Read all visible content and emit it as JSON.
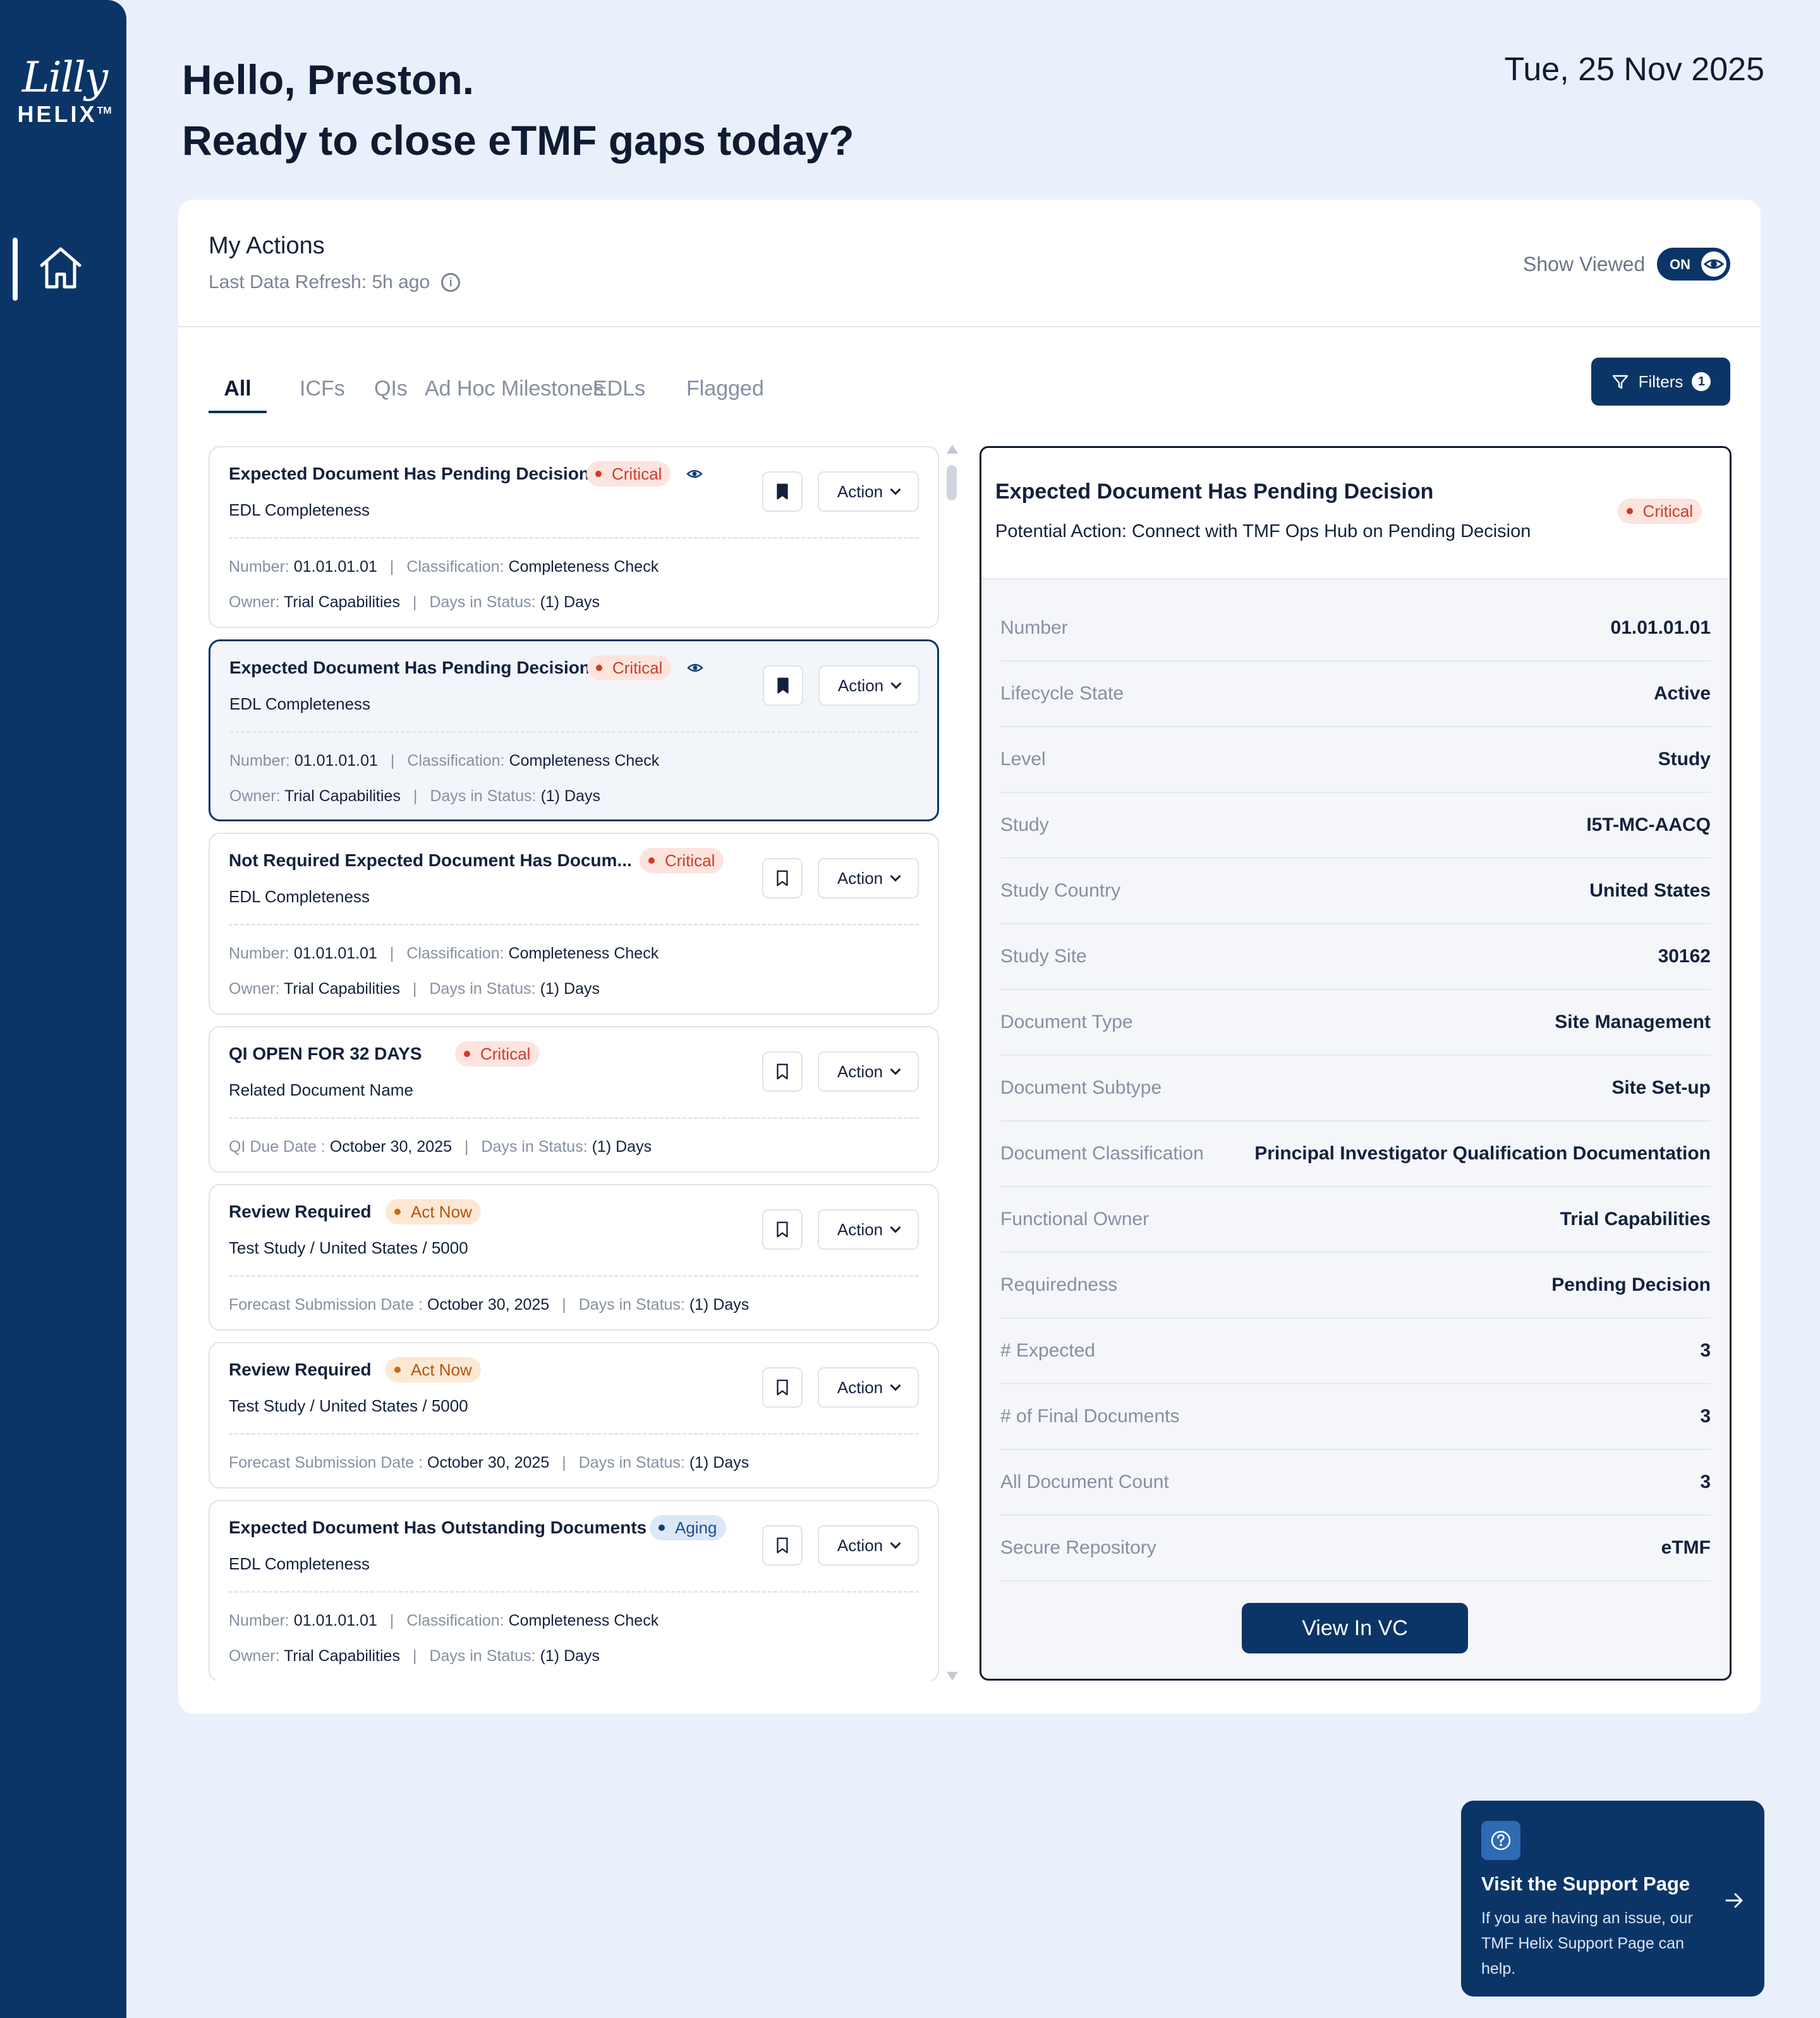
{
  "brand": {
    "script": "Lilly",
    "name": "HELIX",
    "tm": "TM"
  },
  "nav": {
    "home": "home"
  },
  "header": {
    "greeting_line1": "Hello, Preston.",
    "greeting_line2": "Ready to close eTMF gaps today?",
    "date": "Tue, 25 Nov 2025"
  },
  "actions": {
    "title": "My Actions",
    "refresh": "Last Data Refresh: 5h ago",
    "show_viewed_label": "Show Viewed",
    "toggle_label": "ON",
    "toggle_state": true,
    "filters_label": "Filters",
    "filters_count": "1",
    "tabs": [
      {
        "label": "All",
        "active": true
      },
      {
        "label": "ICFs",
        "active": false
      },
      {
        "label": "QIs",
        "active": false
      },
      {
        "label": "Ad Hoc Milestones",
        "active": false
      },
      {
        "label": "EDLs",
        "active": false
      },
      {
        "label": "Flagged",
        "active": false
      }
    ]
  },
  "items": [
    {
      "title": "Expected Document Has Pending Decision",
      "badge": "Critical",
      "badge_type": "critical",
      "viewed": true,
      "bookmarked": true,
      "selected": false,
      "subtitle": "EDL Completeness",
      "action": "Action",
      "l1": {
        "a_label": "Number:",
        "a_value": "01.01.01.01",
        "b_label": "Classification:",
        "b_value": "Completeness Check"
      },
      "l2": {
        "a_label": "Owner:",
        "a_value": "Trial Capabilities",
        "b_label": "Days in Status:",
        "b_value": "(1) Days"
      }
    },
    {
      "title": "Expected Document Has Pending Decision",
      "badge": "Critical",
      "badge_type": "critical",
      "viewed": true,
      "bookmarked": true,
      "selected": true,
      "subtitle": "EDL Completeness",
      "action": "Action",
      "l1": {
        "a_label": "Number:",
        "a_value": "01.01.01.01",
        "b_label": "Classification:",
        "b_value": "Completeness Check"
      },
      "l2": {
        "a_label": "Owner:",
        "a_value": "Trial Capabilities",
        "b_label": "Days in Status:",
        "b_value": "(1) Days"
      }
    },
    {
      "title": "Not Required Expected Document Has Docum...",
      "badge": "Critical",
      "badge_type": "critical",
      "viewed": false,
      "bookmarked": false,
      "selected": false,
      "subtitle": "EDL Completeness",
      "action": "Action",
      "l1": {
        "a_label": "Number:",
        "a_value": "01.01.01.01",
        "b_label": "Classification:",
        "b_value": "Completeness Check"
      },
      "l2": {
        "a_label": "Owner:",
        "a_value": "Trial Capabilities",
        "b_label": "Days in Status:",
        "b_value": "(1) Days"
      }
    },
    {
      "title": "QI OPEN FOR 32 DAYS",
      "badge": "Critical",
      "badge_type": "critical",
      "viewed": false,
      "bookmarked": false,
      "selected": false,
      "subtitle": "Related Document Name",
      "action": "Action",
      "l1": {
        "a_label": "QI Due Date :",
        "a_value": "October 30, 2025",
        "b_label": "Days in Status:",
        "b_value": "(1) Days"
      }
    },
    {
      "title": "Review Required",
      "badge": "Act Now",
      "badge_type": "actnow",
      "viewed": false,
      "bookmarked": false,
      "selected": false,
      "subtitle": "Test Study / United States / 5000",
      "action": "Action",
      "l1": {
        "a_label": "Forecast Submission Date :",
        "a_value": "October 30, 2025",
        "b_label": "Days in Status:",
        "b_value": "(1) Days"
      }
    },
    {
      "title": "Review Required",
      "badge": "Act Now",
      "badge_type": "actnow",
      "viewed": false,
      "bookmarked": false,
      "selected": false,
      "subtitle": "Test Study / United States / 5000",
      "action": "Action",
      "l1": {
        "a_label": "Forecast Submission Date :",
        "a_value": "October 30, 2025",
        "b_label": "Days in Status:",
        "b_value": "(1) Days"
      }
    },
    {
      "title": "Expected Document Has Outstanding Documents",
      "badge": "Aging",
      "badge_type": "aging",
      "viewed": false,
      "bookmarked": false,
      "selected": false,
      "subtitle": "EDL Completeness",
      "action": "Action",
      "l1": {
        "a_label": "Number:",
        "a_value": "01.01.01.01",
        "b_label": "Classification:",
        "b_value": "Completeness Check"
      },
      "l2": {
        "a_label": "Owner:",
        "a_value": "Trial Capabilities",
        "b_label": "Days in Status:",
        "b_value": "(1) Days"
      }
    }
  ],
  "detail": {
    "title": "Expected Document Has Pending Decision",
    "potential_action": "Potential  Action: Connect with TMF Ops Hub on Pending Decision",
    "badge": "Critical",
    "rows": [
      {
        "label": "Number",
        "value": "01.01.01.01"
      },
      {
        "label": "Lifecycle State",
        "value": "Active"
      },
      {
        "label": "Level",
        "value": "Study"
      },
      {
        "label": "Study",
        "value": "I5T-MC-AACQ"
      },
      {
        "label": "Study Country",
        "value": "United States"
      },
      {
        "label": "Study Site",
        "value": "30162"
      },
      {
        "label": "Document Type",
        "value": "Site Management"
      },
      {
        "label": "Document Subtype",
        "value": "Site Set-up"
      },
      {
        "label": "Document Classification",
        "value": "Principal Investigator Qualification Documentation"
      },
      {
        "label": "Functional Owner",
        "value": "Trial Capabilities"
      },
      {
        "label": "Requiredness",
        "value": "Pending Decision"
      },
      {
        "label": "# Expected",
        "value": "3"
      },
      {
        "label": "# of Final Documents",
        "value": "3"
      },
      {
        "label": "All Document Count",
        "value": "3"
      },
      {
        "label": "Secure Repository",
        "value": "eTMF"
      }
    ],
    "button": "View In VC"
  },
  "support": {
    "title": "Visit the Support Page",
    "text": "If you are having an issue, our TMF Helix Support Page can help."
  }
}
